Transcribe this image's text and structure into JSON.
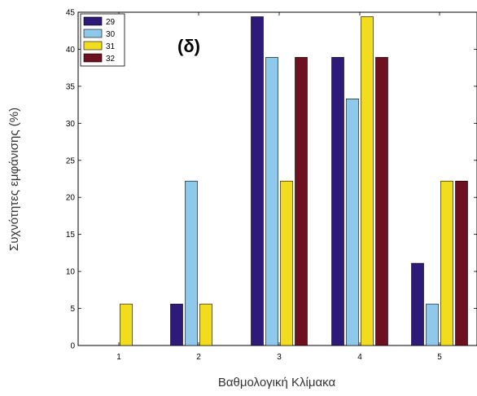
{
  "chart_data": {
    "type": "bar",
    "title": "(δ)",
    "xlabel": "Βαθμολογική Κλίμακα",
    "ylabel": "Συχνότητες εμφάνισης (%)",
    "categories": [
      "1",
      "2",
      "3",
      "4",
      "5"
    ],
    "ylim": [
      0,
      45
    ],
    "yticks": [
      "0",
      "5",
      "10",
      "15",
      "20",
      "25",
      "30",
      "35",
      "40",
      "45"
    ],
    "grid": false,
    "legend_position": "top-left",
    "series": [
      {
        "name": "29",
        "color": "#2e1a78",
        "values": [
          0,
          5.6,
          44.4,
          38.9,
          11.1
        ]
      },
      {
        "name": "30",
        "color": "#8ec8ea",
        "values": [
          0,
          22.2,
          38.9,
          33.3,
          5.6
        ]
      },
      {
        "name": "31",
        "color": "#f2dc1e",
        "values": [
          5.6,
          5.6,
          22.2,
          44.4,
          22.2
        ]
      },
      {
        "name": "32",
        "color": "#6e1020",
        "values": [
          0,
          0,
          38.9,
          38.9,
          22.2
        ]
      }
    ]
  }
}
